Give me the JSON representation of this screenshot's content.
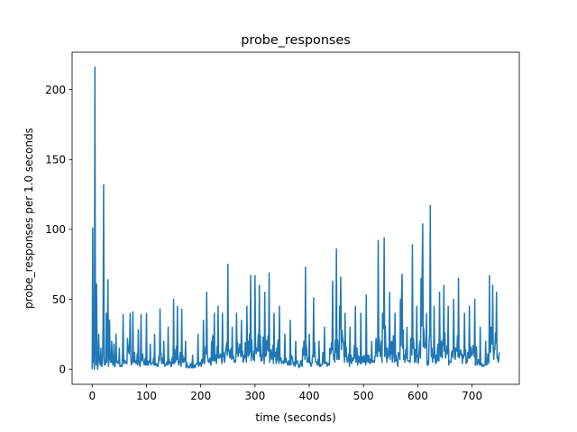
{
  "chart_data": {
    "type": "line",
    "title": "probe_responses",
    "xlabel": "time (seconds)",
    "ylabel": "probe_responses per 1.0 seconds",
    "xlim": [
      -37,
      787
    ],
    "ylim": [
      -10.8,
      226.8
    ],
    "xticks": [
      0,
      100,
      200,
      300,
      400,
      500,
      600,
      700
    ],
    "yticks": [
      0,
      50,
      100,
      150,
      200
    ],
    "grid": false,
    "color": "#1f77b4",
    "series": [
      {
        "peaks": [
          [
            0,
            0
          ],
          [
            1,
            101
          ],
          [
            2,
            5
          ],
          [
            3,
            12
          ],
          [
            4,
            0
          ],
          [
            5,
            216
          ],
          [
            6,
            20
          ],
          [
            7,
            3
          ],
          [
            8,
            61
          ],
          [
            9,
            10
          ],
          [
            10,
            0
          ],
          [
            12,
            25
          ],
          [
            14,
            5
          ],
          [
            16,
            15
          ],
          [
            18,
            2
          ],
          [
            20,
            30
          ],
          [
            21,
            132
          ],
          [
            22,
            8
          ],
          [
            24,
            3
          ],
          [
            26,
            40
          ],
          [
            27,
            5
          ],
          [
            29,
            64
          ],
          [
            30,
            2
          ],
          [
            32,
            35
          ],
          [
            34,
            5
          ],
          [
            36,
            20
          ],
          [
            38,
            3
          ],
          [
            40,
            18
          ],
          [
            42,
            2
          ],
          [
            44,
            25
          ],
          [
            46,
            6
          ],
          [
            50,
            15
          ],
          [
            55,
            2
          ],
          [
            57,
            39
          ],
          [
            60,
            5
          ],
          [
            65,
            22
          ],
          [
            70,
            40
          ],
          [
            72,
            3
          ],
          [
            75,
            41
          ],
          [
            80,
            6
          ],
          [
            85,
            28
          ],
          [
            88,
            2
          ],
          [
            90,
            39
          ],
          [
            95,
            5
          ],
          [
            100,
            40
          ],
          [
            103,
            3
          ],
          [
            107,
            18
          ],
          [
            110,
            4
          ],
          [
            115,
            25
          ],
          [
            120,
            2
          ],
          [
            125,
            43
          ],
          [
            128,
            4
          ],
          [
            132,
            20
          ],
          [
            135,
            3
          ],
          [
            140,
            30
          ],
          [
            145,
            2
          ],
          [
            150,
            50
          ],
          [
            153,
            5
          ],
          [
            157,
            45
          ],
          [
            160,
            3
          ],
          [
            165,
            43
          ],
          [
            168,
            5
          ],
          [
            172,
            20
          ],
          [
            178,
            2
          ],
          [
            185,
            10
          ],
          [
            190,
            3
          ],
          [
            195,
            25
          ],
          [
            200,
            5
          ],
          [
            205,
            35
          ],
          [
            208,
            10
          ],
          [
            211,
            55
          ],
          [
            214,
            5
          ],
          [
            220,
            20
          ],
          [
            225,
            40
          ],
          [
            228,
            10
          ],
          [
            232,
            45
          ],
          [
            235,
            8
          ],
          [
            240,
            40
          ],
          [
            244,
            5
          ],
          [
            250,
            75
          ],
          [
            253,
            10
          ],
          [
            258,
            30
          ],
          [
            262,
            5
          ],
          [
            266,
            40
          ],
          [
            270,
            15
          ],
          [
            275,
            35
          ],
          [
            280,
            10
          ],
          [
            285,
            45
          ],
          [
            288,
            20
          ],
          [
            292,
            67
          ],
          [
            295,
            10
          ],
          [
            300,
            67
          ],
          [
            303,
            15
          ],
          [
            308,
            60
          ],
          [
            312,
            10
          ],
          [
            318,
            55
          ],
          [
            322,
            20
          ],
          [
            326,
            69
          ],
          [
            330,
            10
          ],
          [
            335,
            40
          ],
          [
            340,
            15
          ],
          [
            345,
            45
          ],
          [
            350,
            5
          ],
          [
            355,
            25
          ],
          [
            360,
            3
          ],
          [
            365,
            35
          ],
          [
            370,
            5
          ],
          [
            375,
            20
          ],
          [
            380,
            3
          ],
          [
            388,
            15
          ],
          [
            393,
            73
          ],
          [
            396,
            5
          ],
          [
            400,
            25
          ],
          [
            404,
            3
          ],
          [
            408,
            51
          ],
          [
            412,
            5
          ],
          [
            418,
            20
          ],
          [
            422,
            3
          ],
          [
            428,
            30
          ],
          [
            432,
            5
          ],
          [
            438,
            15
          ],
          [
            443,
            63
          ],
          [
            446,
            10
          ],
          [
            450,
            86
          ],
          [
            453,
            15
          ],
          [
            456,
            45
          ],
          [
            458,
            66
          ],
          [
            462,
            20
          ],
          [
            466,
            40
          ],
          [
            470,
            5
          ],
          [
            475,
            30
          ],
          [
            480,
            8
          ],
          [
            485,
            45
          ],
          [
            490,
            10
          ],
          [
            495,
            40
          ],
          [
            500,
            5
          ],
          [
            505,
            53
          ],
          [
            510,
            10
          ],
          [
            515,
            20
          ],
          [
            520,
            5
          ],
          [
            527,
            92
          ],
          [
            530,
            15
          ],
          [
            535,
            40
          ],
          [
            538,
            94
          ],
          [
            542,
            10
          ],
          [
            548,
            55
          ],
          [
            552,
            20
          ],
          [
            558,
            40
          ],
          [
            562,
            5
          ],
          [
            568,
            50
          ],
          [
            571,
            68
          ],
          [
            575,
            10
          ],
          [
            580,
            30
          ],
          [
            585,
            5
          ],
          [
            590,
            89
          ],
          [
            593,
            15
          ],
          [
            598,
            45
          ],
          [
            602,
            10
          ],
          [
            606,
            65
          ],
          [
            609,
            104
          ],
          [
            612,
            20
          ],
          [
            616,
            40
          ],
          [
            620,
            5
          ],
          [
            623,
            117
          ],
          [
            626,
            15
          ],
          [
            630,
            45
          ],
          [
            634,
            10
          ],
          [
            640,
            55
          ],
          [
            643,
            20
          ],
          [
            648,
            60
          ],
          [
            652,
            10
          ],
          [
            656,
            45
          ],
          [
            660,
            5
          ],
          [
            666,
            50
          ],
          [
            670,
            15
          ],
          [
            675,
            65
          ],
          [
            680,
            10
          ],
          [
            686,
            40
          ],
          [
            690,
            5
          ],
          [
            695,
            45
          ],
          [
            700,
            10
          ],
          [
            705,
            50
          ],
          [
            710,
            5
          ],
          [
            715,
            30
          ],
          [
            720,
            3
          ],
          [
            725,
            20
          ],
          [
            728,
            5
          ],
          [
            732,
            67
          ],
          [
            735,
            30
          ],
          [
            738,
            60
          ],
          [
            741,
            15
          ],
          [
            745,
            55
          ],
          [
            748,
            5
          ],
          [
            750,
            12
          ]
        ]
      }
    ]
  }
}
